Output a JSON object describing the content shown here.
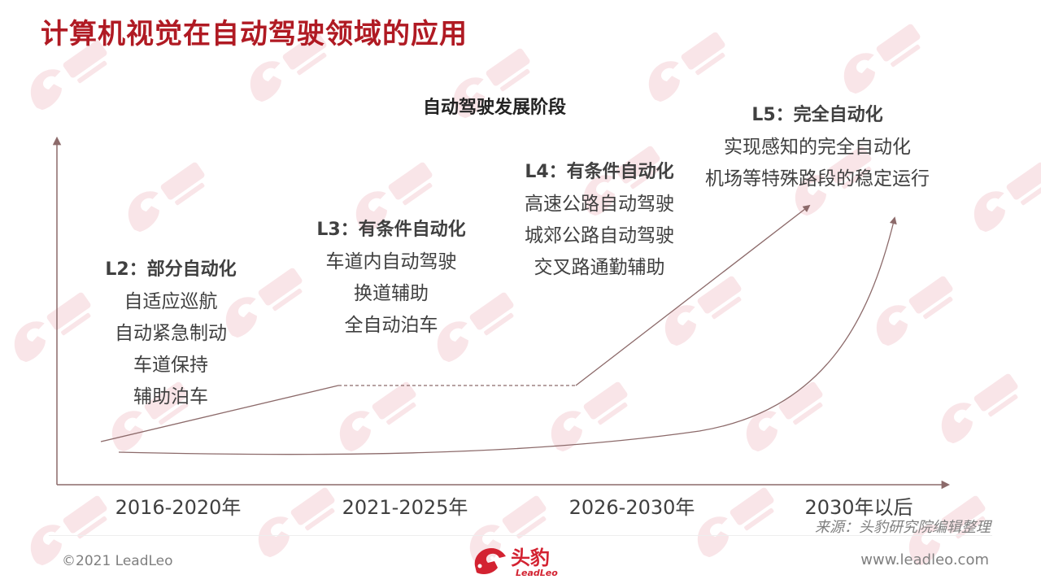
{
  "page": {
    "title": "计算机视觉在自动驾驶领域的应用",
    "brand_color": "#b01a23"
  },
  "diagram": {
    "title": "自动驾驶发展阶段",
    "stages": [
      {
        "heading": "L2：部分自动化",
        "items": [
          "自适应巡航",
          "自动紧急制动",
          "车道保持",
          "辅助泊车"
        ]
      },
      {
        "heading": "L3：有条件自动化",
        "items": [
          "车道内自动驾驶",
          "换道辅助",
          "全自动泊车"
        ]
      },
      {
        "heading": "L4：有条件自动化",
        "items": [
          "高速公路自动驾驶",
          "城郊公路自动驾驶",
          "交叉路通勤辅助"
        ]
      },
      {
        "heading": "L5：完全自动化",
        "items": [
          "实现感知的完全自动化",
          "机场等特殊路段的稳定运行"
        ]
      }
    ],
    "periods": [
      "2016-2020年",
      "2021-2025年",
      "2026-2030年",
      "2030年以后"
    ],
    "line_color": "#8c6a6a"
  },
  "footer": {
    "source": "来源：头豹研究院编辑整理",
    "copyright": "©2021 LeadLeo",
    "url": "www.leadleo.com",
    "logo_cn": "头豹",
    "logo_en": "LeadLeo",
    "logo_icon": "leopard-head-icon"
  }
}
